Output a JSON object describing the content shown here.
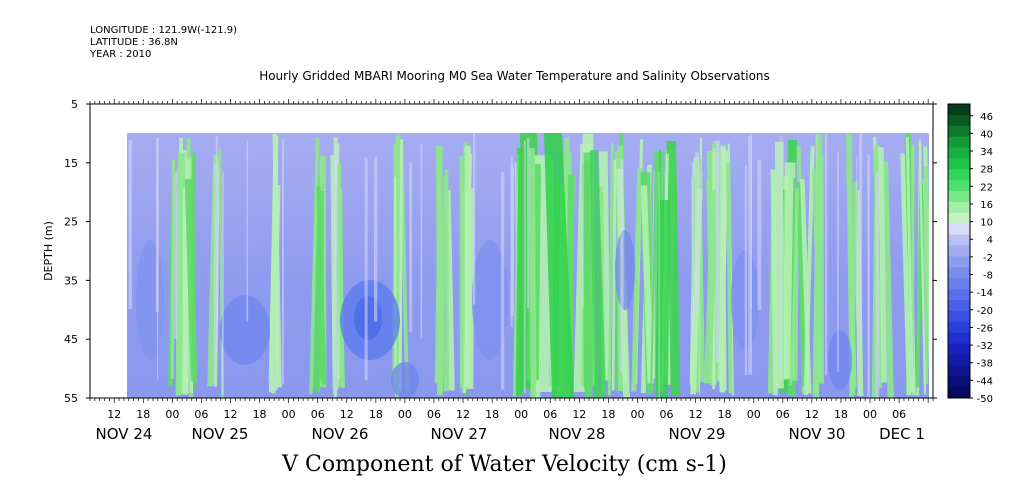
{
  "meta": {
    "longitude": "LONGITUDE : 121.9W(-121.9)",
    "latitude": "LATITUDE : 36.8N",
    "year": "YEAR : 2010"
  },
  "chart_data": {
    "type": "heatmap",
    "title": "Hourly Gridded MBARI Mooring M0 Sea Water Temperature and Salinity Observations",
    "variable_label": "V Component of Water Velocity (cm s-1)",
    "ylabel": "DEPTH (m)",
    "y_range": [
      5,
      55
    ],
    "y_ticks": [
      5,
      15,
      25,
      35,
      45,
      55
    ],
    "data_depth_range": [
      10,
      55
    ],
    "x_start": "NOV 24 07:00",
    "x_end": "DEC 1 13:00",
    "data_start": "NOV 24 17:00",
    "hour_ticks": [
      "12",
      "18",
      "00",
      "06",
      "12",
      "18",
      "00",
      "06",
      "12",
      "18",
      "00",
      "06",
      "12",
      "18",
      "00",
      "06",
      "12",
      "18",
      "00",
      "06",
      "12",
      "18",
      "00",
      "06",
      "12",
      "18",
      "00",
      "06"
    ],
    "day_labels": [
      "NOV 24",
      "NOV 25",
      "NOV 26",
      "NOV 27",
      "NOV 28",
      "NOV 29",
      "NOV 30",
      "DEC  1"
    ],
    "colorbar": {
      "min": -50,
      "max": 50,
      "step": 6,
      "labels": [
        "46",
        "40",
        "34",
        "28",
        "22",
        "16",
        "10",
        "4",
        "-2",
        "-8",
        "-14",
        "-20",
        "-26",
        "-32",
        "-38",
        "-44",
        "-50"
      ]
    },
    "features": [
      {
        "period": "NOV 25 06",
        "sign": "positive",
        "note": "green band"
      },
      {
        "period": "NOV 26 06",
        "sign": "positive",
        "note": "green band"
      },
      {
        "period": "NOV 26 15",
        "sign": "negative",
        "note": "blue core near 40 m, about -25"
      },
      {
        "period": "NOV 28 00-12",
        "sign": "positive",
        "note": "strong green, about +15"
      },
      {
        "period": "NOV 29 06",
        "sign": "positive",
        "note": "green band"
      },
      {
        "period": "NOV 30 00-06",
        "sign": "positive",
        "note": "green band"
      }
    ]
  }
}
